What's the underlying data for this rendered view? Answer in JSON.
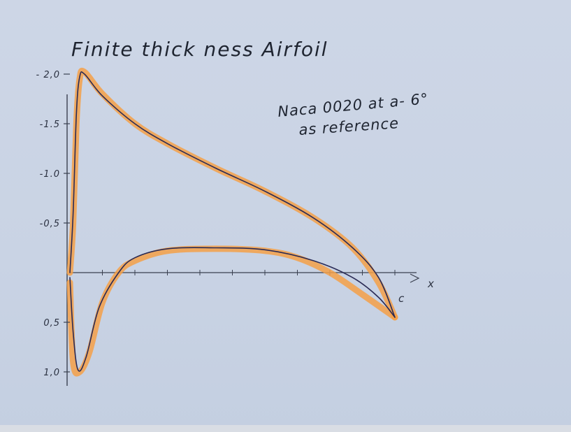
{
  "chart_data": {
    "type": "line",
    "title": "Finite thick ness Airfoil",
    "annotation": [
      "Naca 0020 at a- 6°",
      "as reference"
    ],
    "xlabel": "x",
    "x_end_label": "c",
    "x_range": [
      0,
      1
    ],
    "y_range": [
      -2.15,
      1.1
    ],
    "y_ticks": [
      {
        "value": -2.0,
        "label": "- 2,0"
      },
      {
        "value": -1.5,
        "label": "-1.5"
      },
      {
        "value": -1.0,
        "label": "-1.0"
      },
      {
        "value": -0.5,
        "label": "-0,5"
      },
      {
        "value": 0.5,
        "label": "0,5"
      },
      {
        "value": 1.0,
        "label": "1,0"
      }
    ],
    "series": [
      {
        "color": "#f4a048",
        "points": [
          [
            0.0,
            0.1
          ],
          [
            0.01,
            0.9
          ],
          [
            0.03,
            1.0
          ],
          [
            0.06,
            0.8
          ],
          [
            0.1,
            0.3
          ],
          [
            0.15,
            0.0
          ],
          [
            0.2,
            -0.12
          ],
          [
            0.3,
            -0.22
          ],
          [
            0.45,
            -0.24
          ],
          [
            0.6,
            -0.22
          ],
          [
            0.7,
            -0.15
          ],
          [
            0.8,
            0.0
          ],
          [
            0.9,
            0.22
          ],
          [
            1.0,
            0.45
          ]
        ]
      },
      {
        "color": "#f4a048",
        "points": [
          [
            0.0,
            0.0
          ],
          [
            0.01,
            -0.5
          ],
          [
            0.02,
            -1.5
          ],
          [
            0.03,
            -1.95
          ],
          [
            0.045,
            -2.02
          ],
          [
            0.1,
            -1.8
          ],
          [
            0.2,
            -1.5
          ],
          [
            0.3,
            -1.3
          ],
          [
            0.45,
            -1.05
          ],
          [
            0.6,
            -0.82
          ],
          [
            0.75,
            -0.55
          ],
          [
            0.87,
            -0.25
          ],
          [
            0.95,
            0.1
          ],
          [
            1.0,
            0.45
          ]
        ]
      },
      {
        "color": "#2a2a55",
        "points": [
          [
            0.0,
            0.05
          ],
          [
            0.01,
            0.6
          ],
          [
            0.025,
            0.98
          ],
          [
            0.05,
            0.85
          ],
          [
            0.09,
            0.35
          ],
          [
            0.15,
            0.0
          ],
          [
            0.2,
            -0.15
          ],
          [
            0.3,
            -0.24
          ],
          [
            0.45,
            -0.25
          ],
          [
            0.6,
            -0.23
          ],
          [
            0.75,
            -0.12
          ],
          [
            0.87,
            0.05
          ],
          [
            0.95,
            0.25
          ],
          [
            1.0,
            0.45
          ]
        ]
      },
      {
        "color": "#2a2a55",
        "points": [
          [
            0.0,
            0.0
          ],
          [
            0.01,
            -0.6
          ],
          [
            0.02,
            -1.6
          ],
          [
            0.03,
            -1.97
          ],
          [
            0.045,
            -2.0
          ],
          [
            0.1,
            -1.78
          ],
          [
            0.2,
            -1.5
          ],
          [
            0.3,
            -1.3
          ],
          [
            0.45,
            -1.05
          ],
          [
            0.6,
            -0.82
          ],
          [
            0.75,
            -0.55
          ],
          [
            0.87,
            -0.25
          ],
          [
            0.95,
            0.05
          ],
          [
            1.0,
            0.45
          ]
        ]
      }
    ]
  }
}
